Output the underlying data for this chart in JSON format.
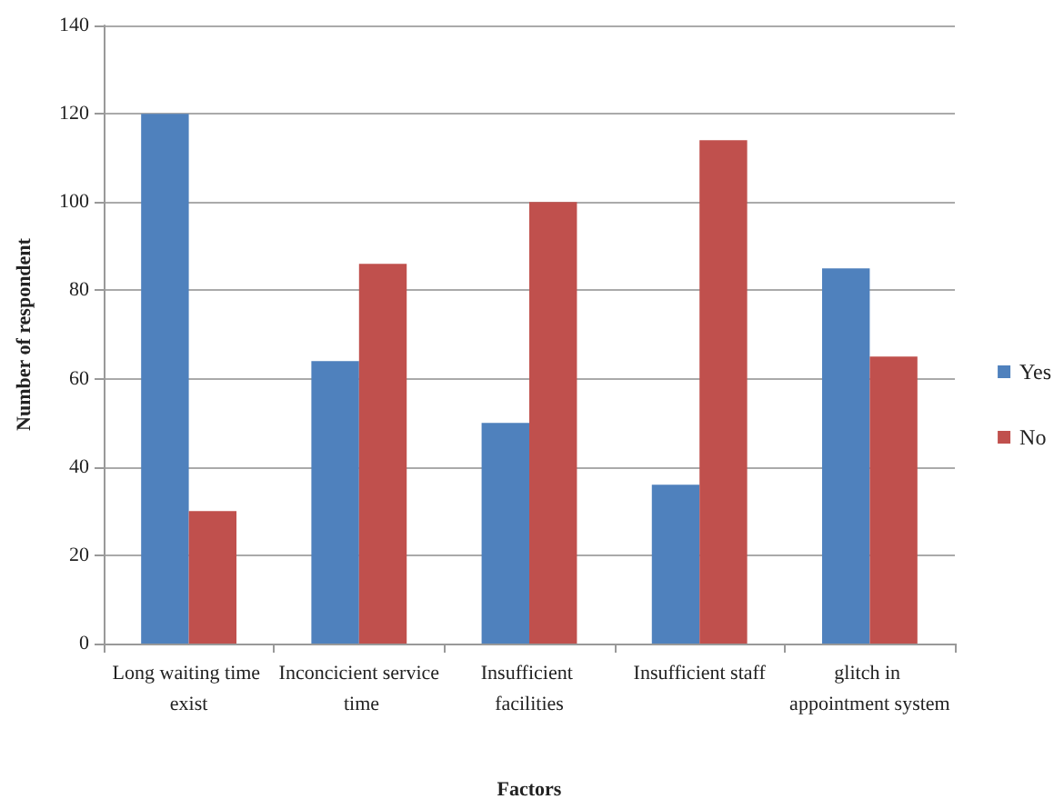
{
  "chart_data": {
    "type": "bar",
    "xlabel": "Factors",
    "ylabel": "Number of respondent",
    "categories": [
      "Long waiting time exist",
      "Inconcicient service time",
      "Insufficient facilities",
      "Insufficient staff",
      "glitch in appointment system"
    ],
    "series": [
      {
        "name": "Yes",
        "color": "#4f81bd",
        "values": [
          120,
          64,
          50,
          36,
          85
        ]
      },
      {
        "name": "No",
        "color": "#c0504d",
        "values": [
          30,
          86,
          100,
          114,
          65
        ]
      }
    ],
    "ylim": [
      0,
      140
    ],
    "yticks": [
      0,
      20,
      40,
      60,
      80,
      100,
      120,
      140
    ],
    "grid": "y",
    "legend": "right"
  }
}
